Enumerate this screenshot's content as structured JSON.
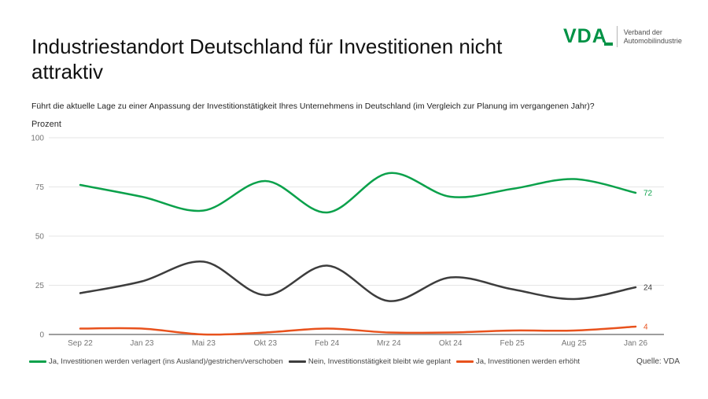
{
  "header": {
    "title": "Industriestandort Deutschland für Investitionen nicht attraktiv",
    "logo": {
      "text": "VDA",
      "subtext_line1": "Verband der",
      "subtext_line2": "Automobilindustrie",
      "brand_green": "#009245"
    }
  },
  "question": "Führt die aktuelle Lage zu einer Anpassung der Investitionstätigkeit Ihres Unternehmens in Deutschland (im Vergleich zur Planung im vergangenen Jahr)?",
  "source": "Quelle: VDA",
  "chart_data": {
    "type": "line",
    "line_style": "smooth",
    "title": "Industriestandort Deutschland für Investitionen nicht attraktiv",
    "ylabel": "Prozent",
    "xlabel": "",
    "ylim": [
      0,
      100
    ],
    "y_ticks": [
      0,
      25,
      50,
      75,
      100
    ],
    "grid": true,
    "legend_position": "bottom",
    "categories": [
      "Sep 22",
      "Jan 23",
      "Mai 23",
      "Okt 23",
      "Feb 24",
      "Mrz 24",
      "Okt 24",
      "Feb 25",
      "Aug 25",
      "Jan 26"
    ],
    "series": [
      {
        "name": "Ja, Investitionen werden verlagert (ins Ausland)/gestrichen/verschoben",
        "color": "#0ba14b",
        "values": [
          76,
          70,
          63,
          78,
          62,
          82,
          70,
          74,
          79,
          72
        ],
        "end_label": "72"
      },
      {
        "name": "Nein, Investitionstätigkeit bleibt wie geplant",
        "color": "#3d3d3d",
        "values": [
          21,
          27,
          37,
          20,
          35,
          17,
          29,
          23,
          18,
          24
        ],
        "end_label": "24"
      },
      {
        "name": "Ja, Investitionen werden erhöht",
        "color": "#e8521d",
        "values": [
          3,
          3,
          0,
          1,
          3,
          1,
          1,
          2,
          2,
          4
        ],
        "end_label": "4"
      }
    ],
    "axis_colors": {
      "gridline": "#e6e6e6",
      "zero_axis": "#9e9e9e",
      "tick_text": "#767676"
    }
  }
}
